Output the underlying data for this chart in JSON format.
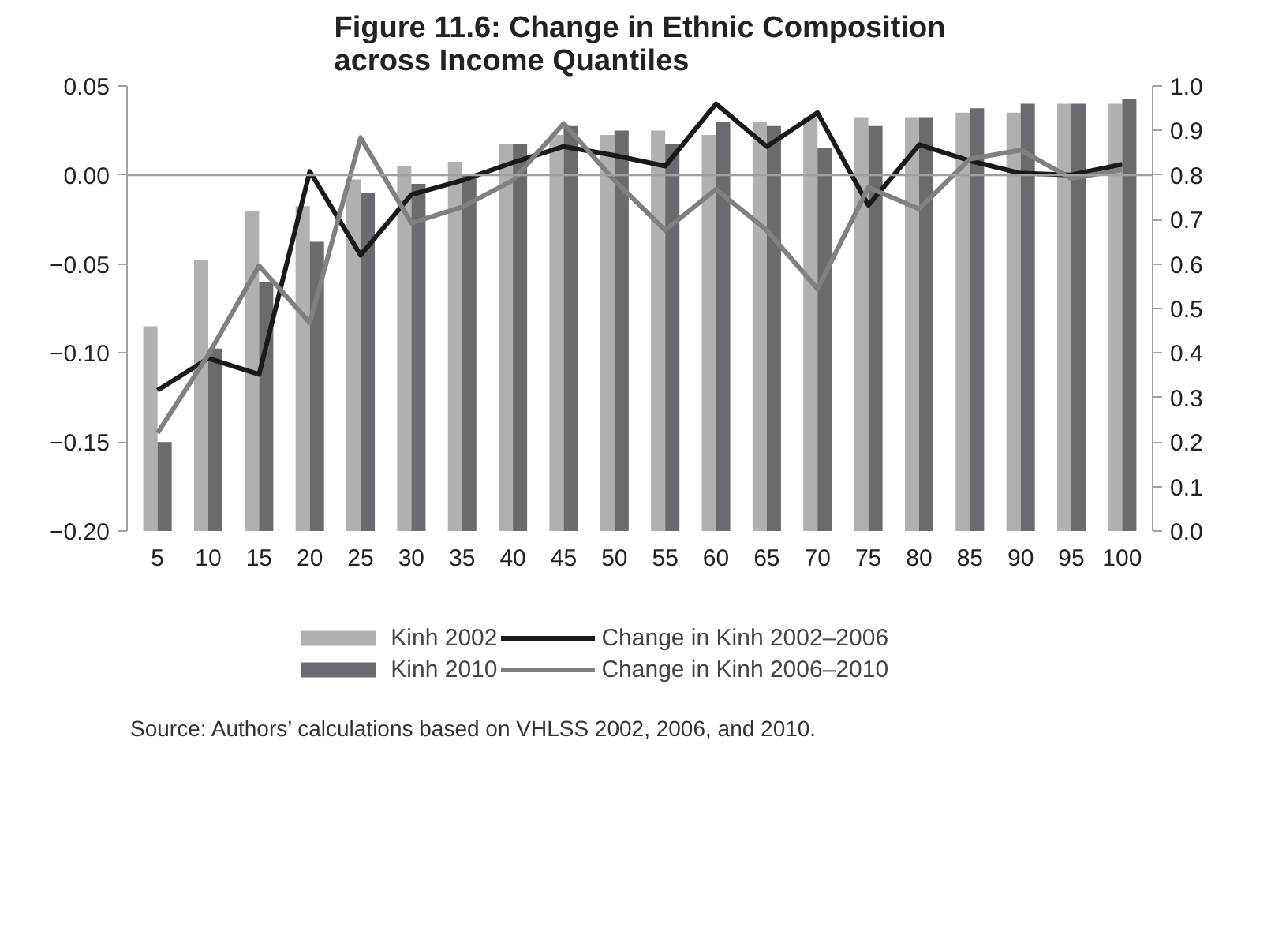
{
  "chart_data": {
    "type": "bar",
    "title": "Figure 11.6: Change in Ethnic Composition across Income Quantiles",
    "categories": [
      "5",
      "10",
      "15",
      "20",
      "25",
      "30",
      "35",
      "40",
      "45",
      "50",
      "55",
      "60",
      "65",
      "70",
      "75",
      "80",
      "85",
      "90",
      "95",
      "100"
    ],
    "series": [
      {
        "name": "Kinh 2002",
        "axis": "y2",
        "color": "#b0b0b2",
        "values": [
          0.46,
          0.61,
          0.72,
          0.73,
          0.79,
          0.82,
          0.83,
          0.87,
          0.89,
          0.89,
          0.9,
          0.89,
          0.92,
          0.93,
          0.93,
          0.93,
          0.94,
          0.94,
          0.96,
          0.96
        ]
      },
      {
        "name": "Kinh 2010",
        "axis": "y2",
        "color": "#6b6b6f",
        "values": [
          0.2,
          0.41,
          0.56,
          0.65,
          0.76,
          0.78,
          0.8,
          0.87,
          0.91,
          0.9,
          0.87,
          0.92,
          0.91,
          0.86,
          0.91,
          0.93,
          0.95,
          0.96,
          0.96,
          0.97
        ]
      },
      {
        "name": "Change in Kinh 2002–2006",
        "type": "line",
        "color": "#1a1a1a",
        "values": [
          -0.121,
          -0.103,
          -0.112,
          0.002,
          -0.045,
          -0.011,
          -0.003,
          0.007,
          0.016,
          0.011,
          0.005,
          0.04,
          0.016,
          0.035,
          -0.017,
          0.017,
          0.008,
          0.001,
          0.0,
          0.006
        ]
      },
      {
        "name": "Change in Kinh 2006–2010",
        "type": "line",
        "color": "#808082",
        "values": [
          -0.145,
          -0.101,
          -0.051,
          -0.083,
          0.021,
          -0.027,
          -0.018,
          -0.003,
          0.029,
          -0.003,
          -0.031,
          -0.008,
          -0.031,
          -0.064,
          -0.007,
          -0.019,
          0.009,
          0.014,
          -0.002,
          0.003
        ]
      }
    ],
    "ylim": [
      -0.2,
      0.05
    ],
    "yticks": [
      {
        "value": -0.2,
        "label": "−0.20"
      },
      {
        "value": -0.15,
        "label": "−0.15"
      },
      {
        "value": -0.1,
        "label": "−0.10"
      },
      {
        "value": -0.05,
        "label": "−0.05"
      },
      {
        "value": 0,
        "label": "0.00"
      },
      {
        "value": 0.05,
        "label": "0.05"
      }
    ],
    "y2lim": [
      0,
      1
    ],
    "y2ticks": [
      {
        "value": 0,
        "label": "0.0"
      },
      {
        "value": 0.1,
        "label": "0.1"
      },
      {
        "value": 0.2,
        "label": "0.2"
      },
      {
        "value": 0.3,
        "label": "0.3"
      },
      {
        "value": 0.4,
        "label": "0.4"
      },
      {
        "value": 0.5,
        "label": "0.5"
      },
      {
        "value": 0.6,
        "label": "0.6"
      },
      {
        "value": 0.7,
        "label": "0.7"
      },
      {
        "value": 0.8,
        "label": "0.8"
      },
      {
        "value": 0.9,
        "label": "0.9"
      },
      {
        "value": 1,
        "label": "1.0"
      }
    ],
    "ref_lines": [
      {
        "axis": "y",
        "value": 0,
        "color": "#a0a0a0"
      }
    ],
    "legend": "bottom",
    "grid": false,
    "annotations": [
      "Source: Authors’ calculations based on VHLSS 2002, 2006, and 2010."
    ]
  }
}
